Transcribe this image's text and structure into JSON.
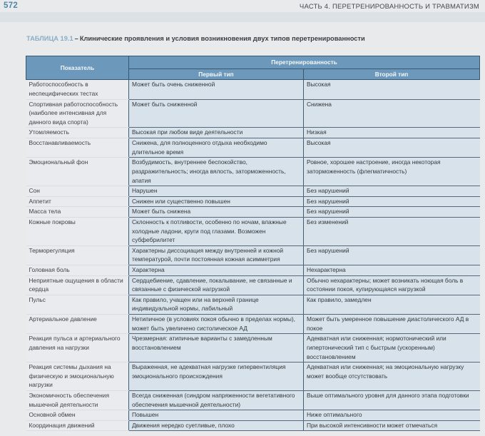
{
  "page": {
    "number": "572",
    "chapter_header": "ЧАСТЬ 4. ПЕРЕТРЕНИРОВАННОСТЬ И ТРАВМАТИЗМ"
  },
  "colors": {
    "accent_blue": "#6b98bb",
    "label_blue": "#8aadc6",
    "cell_blue": "#d7e2ea",
    "indicator_bg": "#e9ebee",
    "page_bg": "#e9eaeb"
  },
  "table": {
    "label": "ТАБЛИЦА 19.1",
    "dash": "–",
    "title": "Клинические проявления и условия возникновения двух типов перетренированности",
    "header": {
      "indicator": "Показатель",
      "group": "Перетренированность",
      "type1": "Первый тип",
      "type2": "Второй тип"
    },
    "rows": [
      {
        "indicator": "Работоспособность в неспецифических тестах",
        "type1": "Может быть очень сниженной",
        "type2": "Высокая"
      },
      {
        "indicator": "Спортивная работоспособ­ность (наиболее интенсивная для данного вида спорта)",
        "type1": "Может быть сниженной",
        "type2": "Снижена"
      },
      {
        "indicator": "Утомляемость",
        "type1": "Высокая при любом виде деятельности",
        "type2": "Низкая"
      },
      {
        "indicator": "Восстанавливаемость",
        "type1": "Снижена, для полноценного отдыха необходимо длительное время",
        "type2": "Высокая"
      },
      {
        "indicator": "Эмоциональный фон",
        "type1": "Возбудимость, внутреннее беспокойство, раздражительность; иногда вялость, заторможенность, апатия",
        "type2": "Ровное, хорошее настроение, иногда некоторая заторможенность (флегматичность)"
      },
      {
        "indicator": "Сон",
        "type1": "Нарушен",
        "type2": "Без нарушений"
      },
      {
        "indicator": "Аппетит",
        "type1": "Снижен или существенно повышен",
        "type2": "Без нарушений"
      },
      {
        "indicator": "Масса тела",
        "type1": "Может быть снижена",
        "type2": "Без нарушений"
      },
      {
        "indicator": "Кожные покровы",
        "type1": "Склонность к потливости, особенно по ночам, влажные холодные ладони, круги под глазами. Возможен субфебрилитет",
        "type2": "Без изменений"
      },
      {
        "indicator": "Терморегуляция",
        "type1": "Характерны диссоциация между внутренней и кожной температурой, почти постоянная кожная асимметрия",
        "type2": "Без нарушений"
      },
      {
        "indicator": "Головная боль",
        "type1": "Характерна",
        "type2": "Нехарактерна"
      },
      {
        "indicator": "Неприятные ощущения в области сердца",
        "type1": "Сердцебиение, сдавление, покалывание, не связанные и связанные с физической нагрузкой",
        "type2": "Обычно нехарактерны; может возникать ноющая боль в состоянии покоя, купирующаяся нагрузкой"
      },
      {
        "indicator": "Пульс",
        "type1": "Как правило, учащен или на верхней границе индивидуальной нормы, лабильный",
        "type2": "Как правило, замедлен"
      },
      {
        "indicator": "Артериальное давление",
        "type1": "Нетипичное (в условиях покоя обычно в пределах нормы), может быть увеличено систолическое АД",
        "type2": "Может быть умеренное повышение диастолического АД в покое"
      },
      {
        "indicator": "Реакция пульса и артериального давления на нагрузки",
        "type1": "Чрезмерная: атипичные варианты с замедленным восстановлением",
        "type2": "Адекватная или сниженная; нормотонический или гипертонический тип с быстрым (ускоренным) восстановлением"
      },
      {
        "indicator": "Реакция системы дыхания на физическую и эмоциональную нагрузки",
        "type1": "Выраженная, не адекватная нагрузке гипервентиляция эмоционального происхождения",
        "type2": "Адекватная или сниженная; на эмоциональную нагрузку может вообще отсутствовать"
      },
      {
        "indicator": "Экономичность обеспечения мышечной деятельности",
        "type1": "Всегда сниженная (синдром напряженности веге­тативного обеспечения мышечной деятельности)",
        "type2": "Выше оптимального уровня для данного этапа подготовки"
      },
      {
        "indicator": "Основной обмен",
        "type1": "Повышен",
        "type2": "Ниже оптимального"
      },
      {
        "indicator": "Координация движений",
        "type1": "Движения нередко суетливые, плохо",
        "type2": "При высокой интенсивности может отмечаться"
      }
    ]
  }
}
